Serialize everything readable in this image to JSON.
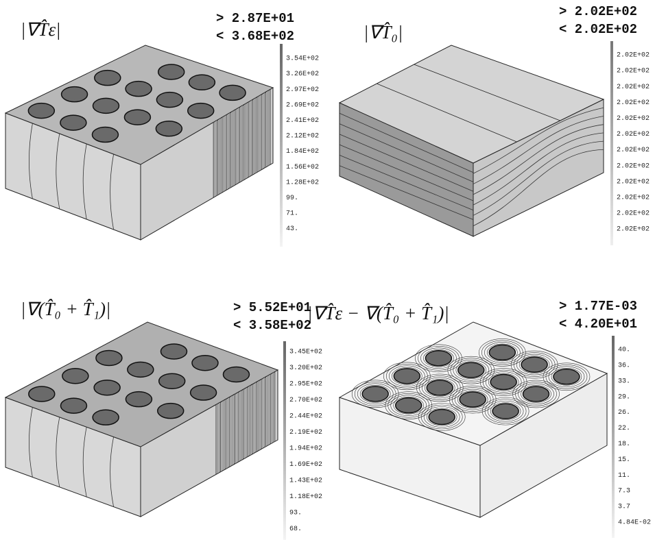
{
  "panels": [
    {
      "label": "|∇T̂ε|",
      "max": "> 2.87E+01",
      "min": "< 3.68E+02",
      "colorbar": [
        "3.54E+02",
        "3.26E+02",
        "2.97E+02",
        "2.69E+02",
        "2.41E+02",
        "2.12E+02",
        "1.84E+02",
        "1.56E+02",
        "1.28E+02",
        "99.",
        "71.",
        "43."
      ]
    },
    {
      "label": "|∇T̂₀|",
      "max": "> 2.02E+02",
      "min": "< 2.02E+02",
      "colorbar": [
        "2.02E+02",
        "2.02E+02",
        "2.02E+02",
        "2.02E+02",
        "2.02E+02",
        "2.02E+02",
        "2.02E+02",
        "2.02E+02",
        "2.02E+02",
        "2.02E+02",
        "2.02E+02",
        "2.02E+02"
      ]
    },
    {
      "label": "|∇(T̂₀ + T̂₁)|",
      "max": "> 5.52E+01",
      "min": "< 3.58E+02",
      "colorbar": [
        "3.45E+02",
        "3.20E+02",
        "2.95E+02",
        "2.70E+02",
        "2.44E+02",
        "2.19E+02",
        "1.94E+02",
        "1.69E+02",
        "1.43E+02",
        "1.18E+02",
        "93.",
        "68."
      ]
    },
    {
      "label": "|∇T̂ε − ∇(T̂₀ + T̂₁)|",
      "max": "> 1.77E-03",
      "min": "< 4.20E+01",
      "colorbar": [
        "40.",
        "36.",
        "33.",
        "29.",
        "26.",
        "22.",
        "18.",
        "15.",
        "11.",
        "7.3",
        "3.7",
        "4.84E-02"
      ]
    }
  ]
}
